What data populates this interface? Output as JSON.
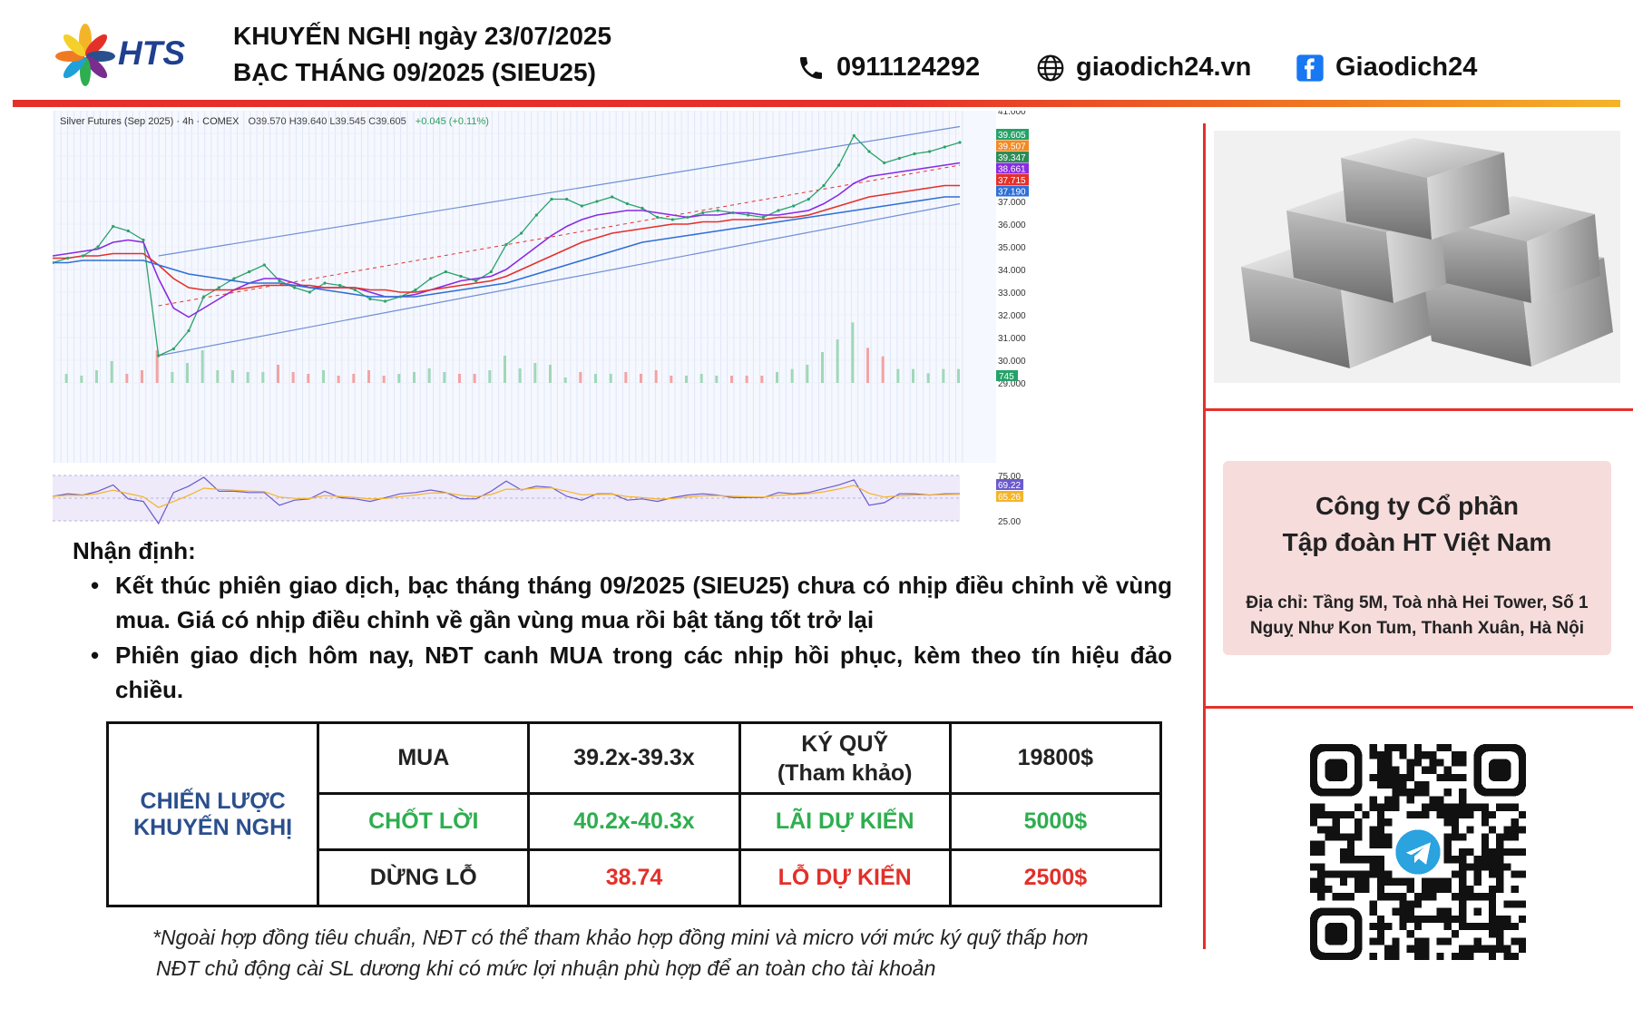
{
  "header": {
    "brand": "HTS",
    "title_line1": "KHUYẾN NGHỊ ngày 23/07/2025",
    "title_line2": "BẠC THÁNG 09/2025 (SIEU25)",
    "phone": "0911124292",
    "website": "giaodich24.vn",
    "facebook": "Giaodich24"
  },
  "chart": {
    "symbol_line": "Silver Futures (Sep 2025) · 4h · COMEX",
    "ohlc": "O39.570 H39.640 L39.545 C39.605",
    "change": "+0.045 (+0.11%)",
    "indicator_count": "4"
  },
  "chart_data": {
    "type": "line",
    "title": "Silver Futures (Sep 2025) · 4h · COMEX",
    "xlabel": "",
    "ylabel": "",
    "ylim": [
      29.0,
      41.0
    ],
    "y_ticks": [
      29.0,
      30.0,
      31.0,
      32.0,
      33.0,
      34.0,
      35.0,
      36.0,
      37.0,
      38.0,
      39.0,
      40.0,
      41.0
    ],
    "y_tick_labels": [
      "29.000",
      "30.000",
      "31.000",
      "32.000",
      "33.000",
      "34.000",
      "35.000",
      "36.000",
      "37.000",
      "38.000",
      "39.000",
      "40.000",
      "41.000"
    ],
    "price_tags": [
      {
        "value": 39.605,
        "label": "39.605",
        "color": "#26a269"
      },
      {
        "value": 39.507,
        "label": "39.507",
        "color": "#f08a24"
      },
      {
        "value": 39.347,
        "label": "39.347",
        "color": "#2e8b57"
      },
      {
        "value": 38.661,
        "label": "38.661",
        "color": "#8a2be2"
      },
      {
        "value": 37.715,
        "label": "37.715",
        "color": "#e5302a"
      },
      {
        "value": 37.19,
        "label": "37.190",
        "color": "#2f6fd6"
      }
    ],
    "volume_tag": "745",
    "x": [
      0,
      1,
      2,
      3,
      4,
      5,
      6,
      7,
      8,
      9,
      10,
      11,
      12,
      13,
      14,
      15,
      16,
      17,
      18,
      19,
      20,
      21,
      22,
      23,
      24,
      25,
      26,
      27,
      28,
      29,
      30,
      31,
      32,
      33,
      34,
      35,
      36,
      37,
      38,
      39,
      40,
      41,
      42,
      43,
      44,
      45,
      46,
      47,
      48,
      49,
      50,
      51,
      52,
      53,
      54,
      55,
      56,
      57,
      58,
      59,
      60
    ],
    "series": [
      {
        "name": "",
        "role": "price",
        "color": "#2ba36a",
        "values": [
          34.3,
          34.5,
          34.6,
          35.0,
          35.9,
          35.7,
          35.3,
          30.2,
          30.5,
          31.3,
          32.8,
          33.2,
          33.6,
          33.9,
          34.2,
          33.5,
          33.2,
          33.0,
          33.4,
          33.3,
          33.1,
          32.7,
          32.6,
          32.8,
          33.1,
          33.6,
          33.9,
          33.7,
          33.5,
          33.9,
          35.1,
          35.6,
          36.4,
          37.1,
          37.1,
          36.8,
          37.0,
          37.2,
          36.9,
          36.7,
          36.3,
          36.2,
          36.3,
          36.5,
          36.6,
          36.5,
          36.4,
          36.3,
          36.6,
          36.8,
          37.1,
          37.7,
          38.6,
          39.9,
          39.2,
          38.7,
          38.9,
          39.1,
          39.2,
          39.4,
          39.6
        ]
      },
      {
        "name": "",
        "role": "ma_short",
        "color": "#8a2be2",
        "values": [
          34.6,
          34.7,
          34.8,
          34.9,
          35.2,
          35.3,
          35.2,
          33.6,
          32.3,
          31.9,
          32.3,
          32.7,
          33.1,
          33.4,
          33.6,
          33.6,
          33.4,
          33.2,
          33.2,
          33.2,
          33.2,
          33.0,
          32.8,
          32.8,
          32.9,
          33.1,
          33.3,
          33.5,
          33.6,
          33.7,
          34.0,
          34.5,
          35.0,
          35.5,
          35.9,
          36.2,
          36.4,
          36.5,
          36.6,
          36.6,
          36.5,
          36.4,
          36.3,
          36.4,
          36.4,
          36.5,
          36.5,
          36.4,
          36.4,
          36.5,
          36.6,
          36.9,
          37.3,
          37.8,
          38.1,
          38.2,
          38.3,
          38.4,
          38.5,
          38.6,
          38.7
        ]
      },
      {
        "name": "",
        "role": "ma_mid",
        "color": "#e5302a",
        "values": [
          34.5,
          34.5,
          34.6,
          34.6,
          34.7,
          34.7,
          34.7,
          34.2,
          33.6,
          33.2,
          33.1,
          33.1,
          33.1,
          33.2,
          33.3,
          33.3,
          33.3,
          33.3,
          33.2,
          33.2,
          33.2,
          33.1,
          33.1,
          33.0,
          33.0,
          33.1,
          33.2,
          33.3,
          33.4,
          33.5,
          33.7,
          34.0,
          34.3,
          34.6,
          34.9,
          35.2,
          35.4,
          35.6,
          35.7,
          35.8,
          35.9,
          36.0,
          36.0,
          36.1,
          36.1,
          36.2,
          36.2,
          36.2,
          36.3,
          36.3,
          36.4,
          36.6,
          36.8,
          37.0,
          37.2,
          37.3,
          37.4,
          37.5,
          37.6,
          37.7,
          37.7
        ]
      },
      {
        "name": "",
        "role": "ma_long",
        "color": "#2f6fd6",
        "values": [
          34.3,
          34.3,
          34.4,
          34.4,
          34.4,
          34.4,
          34.4,
          34.2,
          34.0,
          33.8,
          33.7,
          33.6,
          33.5,
          33.4,
          33.4,
          33.4,
          33.3,
          33.2,
          33.1,
          33.0,
          32.9,
          32.8,
          32.8,
          32.8,
          32.8,
          32.9,
          33.0,
          33.1,
          33.2,
          33.3,
          33.4,
          33.6,
          33.8,
          34.0,
          34.2,
          34.4,
          34.6,
          34.8,
          35.0,
          35.2,
          35.3,
          35.4,
          35.5,
          35.6,
          35.7,
          35.8,
          35.9,
          36.0,
          36.1,
          36.2,
          36.3,
          36.4,
          36.5,
          36.6,
          36.7,
          36.8,
          36.9,
          37.0,
          37.1,
          37.2,
          37.2
        ]
      }
    ],
    "rsi": {
      "y_ticks": [
        25.0,
        50.0,
        75.0
      ],
      "y_tick_labels": [
        "25.00",
        "50.00",
        "75.00"
      ],
      "tags": [
        {
          "label": "69.22",
          "color": "#6a5acd"
        },
        {
          "label": "65.26",
          "color": "#f4b42a"
        }
      ]
    }
  },
  "company": {
    "name_line1": "Công ty Cổ phần",
    "name_line2": "Tập đoàn HT Việt Nam",
    "address_line1": "Địa chỉ: Tầng 5M, Toà nhà Hei Tower, Số 1",
    "address_line2": "Nguỵ Như Kon Tum, Thanh Xuân, Hà Nội"
  },
  "analysis": {
    "title": "Nhận định:",
    "bullets": [
      "Kết thúc phiên giao dịch, bạc tháng tháng 09/2025 (SIEU25) chưa có nhịp điều chỉnh về vùng mua. Giá có nhịp điều chỉnh về gần vùng mua rồi bật tăng tốt trở lại",
      "Phiên giao dịch hôm nay, NĐT canh MUA trong các nhịp hồi phục, kèm theo tín hiệu đảo chiều."
    ]
  },
  "strategy": {
    "label_line1": "CHIẾN LƯỢC",
    "label_line2": "KHUYẾN NGHỊ",
    "rows": [
      [
        "MUA",
        "39.2x-39.3x",
        "KÝ QUỸ\n(Tham khảo)",
        "19800$"
      ],
      [
        "CHỐT LỜI",
        "40.2x-40.3x",
        "LÃI DỰ KIẾN",
        "5000$"
      ],
      [
        "DỪNG LỖ",
        "38.74",
        "LỖ DỰ KIẾN",
        "2500$"
      ]
    ]
  },
  "notes": [
    "*Ngoài hợp đồng tiêu chuẩn, NĐT có thể tham khảo hợp đồng mini và micro với mức ký quỹ thấp hơn",
    "NĐT chủ động cài SL dương khi có mức lợi nhuận phù hợp để an toàn cho tài khoản"
  ],
  "colors": {
    "accent_red": "#e5302a",
    "navy": "#2a4f8d",
    "green": "#2fae4f",
    "card_pink": "#f7dcdc"
  }
}
